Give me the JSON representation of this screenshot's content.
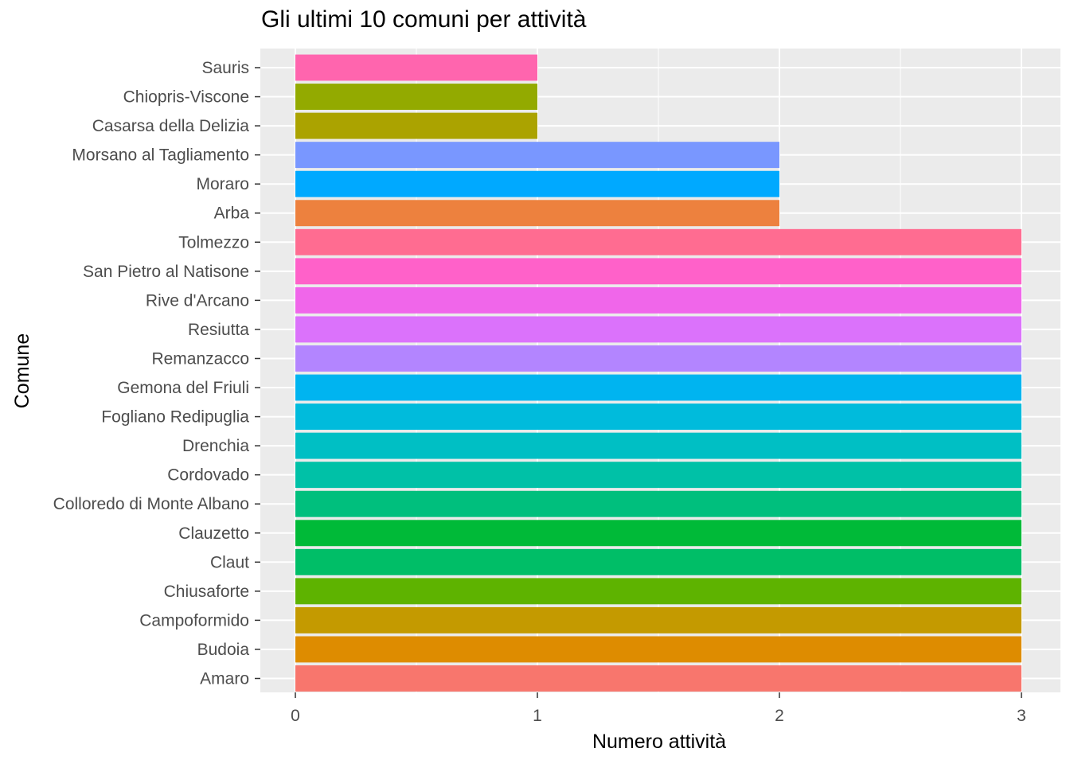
{
  "chart_data": {
    "type": "bar",
    "orientation": "horizontal",
    "title": "Gli ultimi 10 comuni per attività",
    "xlabel": "Numero attività",
    "ylabel": "Comune",
    "xlim": [
      0,
      3
    ],
    "x_ticks": [
      "0",
      "1",
      "2",
      "3"
    ],
    "grid": true,
    "legend": "none",
    "categories": [
      "Sauris",
      "Chiopris-Viscone",
      "Casarsa della Delizia",
      "Morsano al Tagliamento",
      "Moraro",
      "Arba",
      "Tolmezzo",
      "San Pietro al Natisone",
      "Rive d'Arcano",
      "Resiutta",
      "Remanzacco",
      "Gemona del Friuli",
      "Fogliano Redipuglia",
      "Drenchia",
      "Cordovado",
      "Colloredo di Monte Albano",
      "Clauzetto",
      "Claut",
      "Chiusaforte",
      "Campoformido",
      "Budoia",
      "Amaro"
    ],
    "values": [
      1,
      1,
      1,
      2,
      2,
      2,
      3,
      3,
      3,
      3,
      3,
      3,
      3,
      3,
      3,
      3,
      3,
      3,
      3,
      3,
      3,
      3
    ],
    "colors": [
      "#FF65AE",
      "#93AA00",
      "#ABA300",
      "#7997FF",
      "#00A9FF",
      "#ED813E",
      "#FF6C91",
      "#FF61C9",
      "#F066EA",
      "#DB72FB",
      "#B385FF",
      "#00B4F0",
      "#00BBDC",
      "#00BFC4",
      "#00C1A7",
      "#00BF7D",
      "#00BA38",
      "#00BE67",
      "#5EB300",
      "#C49A00",
      "#DE8C00",
      "#F8766D"
    ]
  }
}
